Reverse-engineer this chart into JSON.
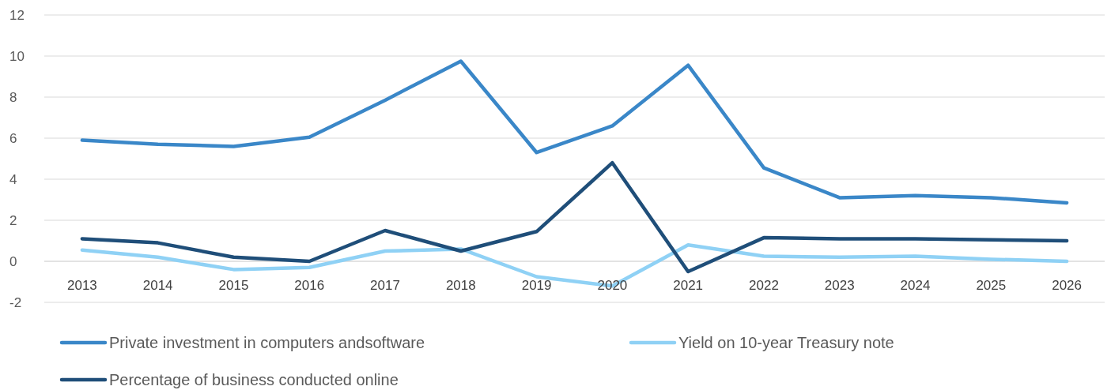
{
  "chart_data": {
    "type": "line",
    "categories": [
      "2013",
      "2014",
      "2015",
      "2016",
      "2017",
      "2018",
      "2019",
      "2020",
      "2021",
      "2022",
      "2023",
      "2024",
      "2025",
      "2026"
    ],
    "series": [
      {
        "name": "Private investment in computers andsoftware",
        "color": "#3a87c8",
        "values": [
          5.9,
          5.7,
          5.6,
          6.05,
          7.85,
          9.75,
          5.3,
          6.6,
          9.55,
          4.55,
          3.1,
          3.2,
          3.1,
          2.85
        ]
      },
      {
        "name": "Yield on 10-year Treasury note",
        "color": "#8fd1f5",
        "values": [
          0.55,
          0.2,
          -0.4,
          -0.3,
          0.5,
          0.6,
          -0.75,
          -1.2,
          0.8,
          0.25,
          0.2,
          0.25,
          0.1,
          0
        ]
      },
      {
        "name": "Percentage of business conducted online",
        "color": "#1f4e79",
        "values": [
          1.1,
          0.9,
          0.2,
          0,
          1.5,
          0.5,
          1.45,
          4.8,
          -0.5,
          1.15,
          1.1,
          1.1,
          1.05,
          1.0
        ]
      }
    ],
    "ylim": [
      -2,
      12
    ],
    "yticks": [
      -2,
      0,
      2,
      4,
      6,
      8,
      10,
      12
    ],
    "grid": "y",
    "legend": "bottom",
    "marker": "none",
    "line_style": "solid"
  }
}
